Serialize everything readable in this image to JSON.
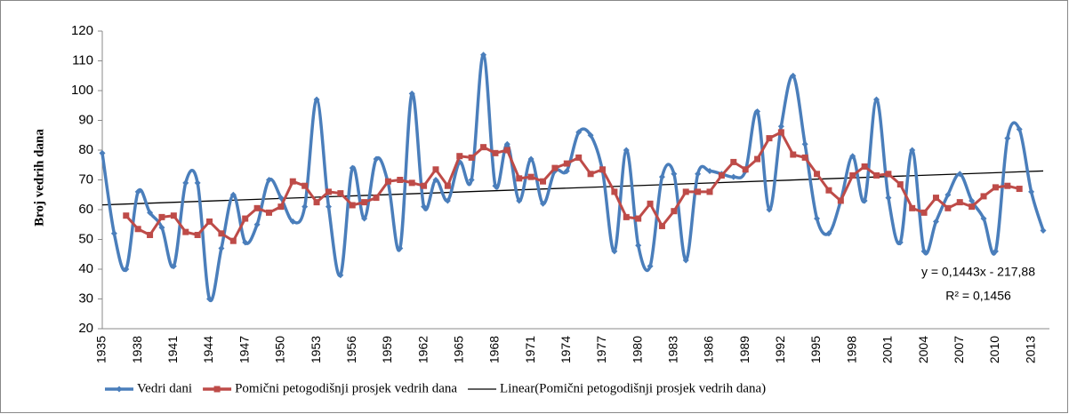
{
  "chart_data": {
    "type": "line",
    "ylabel": "Broj vedrih dana",
    "categories": [
      "1935",
      null,
      null,
      "1938",
      null,
      null,
      "1941",
      null,
      null,
      "1944",
      null,
      null,
      "1947",
      null,
      null,
      "1950",
      null,
      null,
      "1953",
      null,
      null,
      "1956",
      null,
      null,
      "1959",
      null,
      null,
      "1962",
      null,
      null,
      "1965",
      null,
      null,
      "1968",
      null,
      null,
      "1971",
      null,
      null,
      "1974",
      null,
      null,
      "1977",
      null,
      null,
      "1980",
      null,
      null,
      "1983",
      null,
      null,
      "1986",
      null,
      null,
      "1989",
      null,
      null,
      "1992",
      null,
      null,
      "1995",
      null,
      null,
      "1998",
      null,
      null,
      "2001",
      null,
      null,
      "2004",
      null,
      null,
      "2007",
      null,
      null,
      "2010",
      null,
      null,
      "2013",
      null
    ],
    "series": [
      {
        "name": "Vedri dani",
        "color": "#4a7ebb",
        "smooth": true,
        "marker": "diamond",
        "values": [
          79,
          52,
          40,
          66,
          59,
          54,
          41,
          69,
          69,
          30,
          47,
          65,
          49,
          55,
          70,
          64,
          56,
          61,
          97,
          61,
          38,
          74,
          57,
          77,
          69,
          47,
          99,
          61,
          70,
          63,
          76,
          70,
          112,
          68,
          82,
          63,
          77,
          62,
          73,
          73,
          86,
          85,
          73,
          46,
          80,
          48,
          41,
          71,
          72,
          43,
          72,
          73,
          72,
          71,
          73,
          93,
          60,
          88,
          105,
          82,
          57,
          52,
          63,
          78,
          63,
          97,
          64,
          49,
          80,
          46,
          56,
          65,
          72,
          63,
          57,
          46,
          84,
          87,
          66,
          53
        ]
      },
      {
        "name": "Pomični petogodišnji prosjek vedrih dana",
        "color": "#be4b48",
        "smooth": false,
        "marker": "square",
        "values": [
          null,
          null,
          58,
          53.5,
          51.5,
          57.5,
          58,
          52.5,
          51.5,
          56,
          52,
          49.5,
          57,
          60.5,
          59,
          61,
          69.5,
          68,
          62.5,
          66,
          65.5,
          61.5,
          62.5,
          64,
          69.5,
          70,
          69,
          68,
          73.5,
          68,
          78,
          77.5,
          81,
          79,
          80,
          70.5,
          71,
          69.5,
          74,
          75.5,
          77.5,
          72,
          73.5,
          66,
          57.5,
          57,
          62,
          54.5,
          59.5,
          66,
          66,
          66,
          71.5,
          76,
          73.5,
          77,
          84,
          86,
          78.5,
          77.5,
          72,
          66.5,
          63,
          71.5,
          74.5,
          71.5,
          72,
          68.5,
          60.5,
          59,
          64,
          60.5,
          62.5,
          61,
          64.5,
          67.5,
          68,
          67,
          null,
          null
        ]
      }
    ],
    "trendline": {
      "name": "Linear(Pomični petogodišnji prosjek vedrih dana)",
      "color": "#000000",
      "start": 61.6,
      "end": 73.0
    },
    "annotations": [
      "y = 0,1443x - 217,88",
      "R² = 0,1456"
    ],
    "ylim": [
      20,
      120
    ],
    "yticks": [
      20,
      30,
      40,
      50,
      60,
      70,
      80,
      90,
      100,
      110,
      120
    ]
  }
}
